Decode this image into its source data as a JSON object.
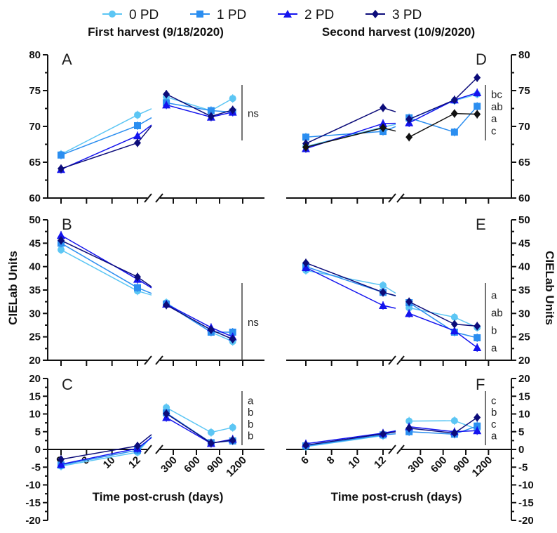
{
  "legend": [
    {
      "name": "0 PD",
      "color": "#5cc6f4",
      "marker": "circle"
    },
    {
      "name": "1 PD",
      "color": "#2b8ef0",
      "marker": "square"
    },
    {
      "name": "2 PD",
      "color": "#1414ee",
      "marker": "triangle"
    },
    {
      "name": "3 PD",
      "color": "#0c0c7a",
      "marker": "diamond"
    }
  ],
  "titles": {
    "left": "First harvest  (9/18/2020)",
    "right": "Second harvest (10/9/2020)"
  },
  "ylabel": "CIELab Units",
  "xlabel": "Time post-crush (days)",
  "chart_data": [
    {
      "type": "line",
      "panel": "A",
      "harvest": "first",
      "ylim": [
        60,
        80
      ],
      "yticks": [
        60,
        65,
        70,
        75,
        80
      ],
      "x": [
        6,
        12,
        210,
        790,
        1070
      ],
      "series": [
        {
          "name": "0 PD",
          "values": [
            66.1,
            71.6,
            74.1,
            72.2,
            73.9
          ]
        },
        {
          "name": "1 PD",
          "values": [
            66.0,
            70.1,
            73.3,
            72.2,
            72.0
          ]
        },
        {
          "name": "2 PD",
          "values": [
            64.0,
            68.7,
            73.0,
            71.3,
            72.0
          ]
        },
        {
          "name": "3 PD",
          "values": [
            64.1,
            67.7,
            74.5,
            71.4,
            72.3
          ]
        }
      ],
      "significance": [
        "ns"
      ]
    },
    {
      "type": "line",
      "panel": "B",
      "harvest": "first",
      "ylim": [
        20,
        50
      ],
      "yticks": [
        20,
        25,
        30,
        35,
        40,
        45,
        50
      ],
      "x": [
        6,
        12,
        210,
        790,
        1070
      ],
      "series": [
        {
          "name": "0 PD",
          "values": [
            43.6,
            34.8,
            32.3,
            26.0,
            24.0
          ]
        },
        {
          "name": "1 PD",
          "values": [
            45.0,
            35.5,
            32.0,
            26.0,
            26.0
          ]
        },
        {
          "name": "2 PD",
          "values": [
            46.7,
            37.3,
            32.0,
            27.0,
            25.0
          ]
        },
        {
          "name": "3 PD",
          "values": [
            45.6,
            37.8,
            31.8,
            26.5,
            24.5
          ]
        }
      ],
      "significance": [
        "ns"
      ]
    },
    {
      "type": "line",
      "panel": "C",
      "harvest": "first",
      "ylim": [
        -20,
        20
      ],
      "yticks": [
        -20,
        -15,
        -10,
        -5,
        0,
        5,
        10,
        15,
        20
      ],
      "x": [
        6,
        12,
        210,
        790,
        1070
      ],
      "series": [
        {
          "name": "0 PD",
          "values": [
            -4.7,
            -0.8,
            11.8,
            4.8,
            6.2
          ]
        },
        {
          "name": "1 PD",
          "values": [
            -4.4,
            -0.2,
            10.3,
            1.9,
            2.4
          ]
        },
        {
          "name": "2 PD",
          "values": [
            -4.2,
            0.3,
            9.0,
            1.7,
            2.9
          ]
        },
        {
          "name": "3 PD",
          "values": [
            -2.8,
            1.0,
            10.1,
            1.8,
            2.6
          ]
        }
      ],
      "significance": [
        "a",
        "b",
        "b",
        "b"
      ]
    },
    {
      "type": "line",
      "panel": "D",
      "harvest": "second",
      "ylim": [
        60,
        80
      ],
      "yticks": [
        60,
        65,
        70,
        75,
        80
      ],
      "x": [
        6,
        12,
        150,
        750,
        1050
      ],
      "series": [
        {
          "name": "0 PD",
          "values": [
            67.2,
            69.9,
            71.0,
            73.6,
            74.5
          ]
        },
        {
          "name": "1 PD",
          "values": [
            68.5,
            69.3,
            71.2,
            69.2,
            72.8
          ]
        },
        {
          "name": "2 PD",
          "values": [
            66.9,
            70.4,
            70.5,
            73.7,
            74.7
          ]
        },
        {
          "name": "3 PD",
          "values": [
            67.6,
            72.6,
            71.0,
            73.7,
            76.8
          ]
        },
        {
          "name": "",
          "color": "#111111",
          "values": [
            67.1,
            69.8,
            68.5,
            71.8,
            71.7
          ]
        }
      ],
      "significance": [
        "bc",
        "ab",
        "a",
        "c"
      ]
    },
    {
      "type": "line",
      "panel": "E",
      "harvest": "second",
      "ylim": [
        20,
        50
      ],
      "yticks": [
        20,
        25,
        30,
        35,
        40,
        45,
        50
      ],
      "x": [
        6,
        12,
        150,
        750,
        1050
      ],
      "series": [
        {
          "name": "0 PD",
          "values": [
            39.2,
            36.0,
            31.2,
            29.2,
            27.0
          ]
        },
        {
          "name": "1 PD",
          "values": [
            40.0,
            34.5,
            32.3,
            26.0,
            24.8
          ]
        },
        {
          "name": "2 PD",
          "values": [
            39.8,
            31.7,
            30.0,
            26.3,
            22.7
          ]
        },
        {
          "name": "3 PD",
          "values": [
            40.8,
            34.5,
            32.5,
            27.7,
            27.3
          ]
        }
      ],
      "significance": [
        "a",
        "ab",
        "b",
        "a"
      ]
    },
    {
      "type": "line",
      "panel": "F",
      "harvest": "second",
      "ylim": [
        -20,
        20
      ],
      "yticks": [
        -20,
        -15,
        -10,
        -5,
        0,
        5,
        10,
        15,
        20
      ],
      "x": [
        6,
        12,
        150,
        750,
        1050
      ],
      "series": [
        {
          "name": "0 PD",
          "values": [
            0.8,
            3.9,
            8.0,
            8.1,
            5.7
          ]
        },
        {
          "name": "1 PD",
          "values": [
            1.0,
            4.1,
            5.0,
            4.3,
            6.6
          ]
        },
        {
          "name": "2 PD",
          "values": [
            1.6,
            4.6,
            6.4,
            5.0,
            5.3
          ]
        },
        {
          "name": "3 PD",
          "values": [
            1.2,
            4.4,
            6.0,
            4.6,
            9.0
          ]
        }
      ],
      "significance": [
        "c",
        "b",
        "c",
        "a"
      ]
    }
  ],
  "xticks": {
    "early": [
      6,
      8,
      10,
      12
    ],
    "late": [
      300,
      600,
      900,
      1200
    ]
  }
}
